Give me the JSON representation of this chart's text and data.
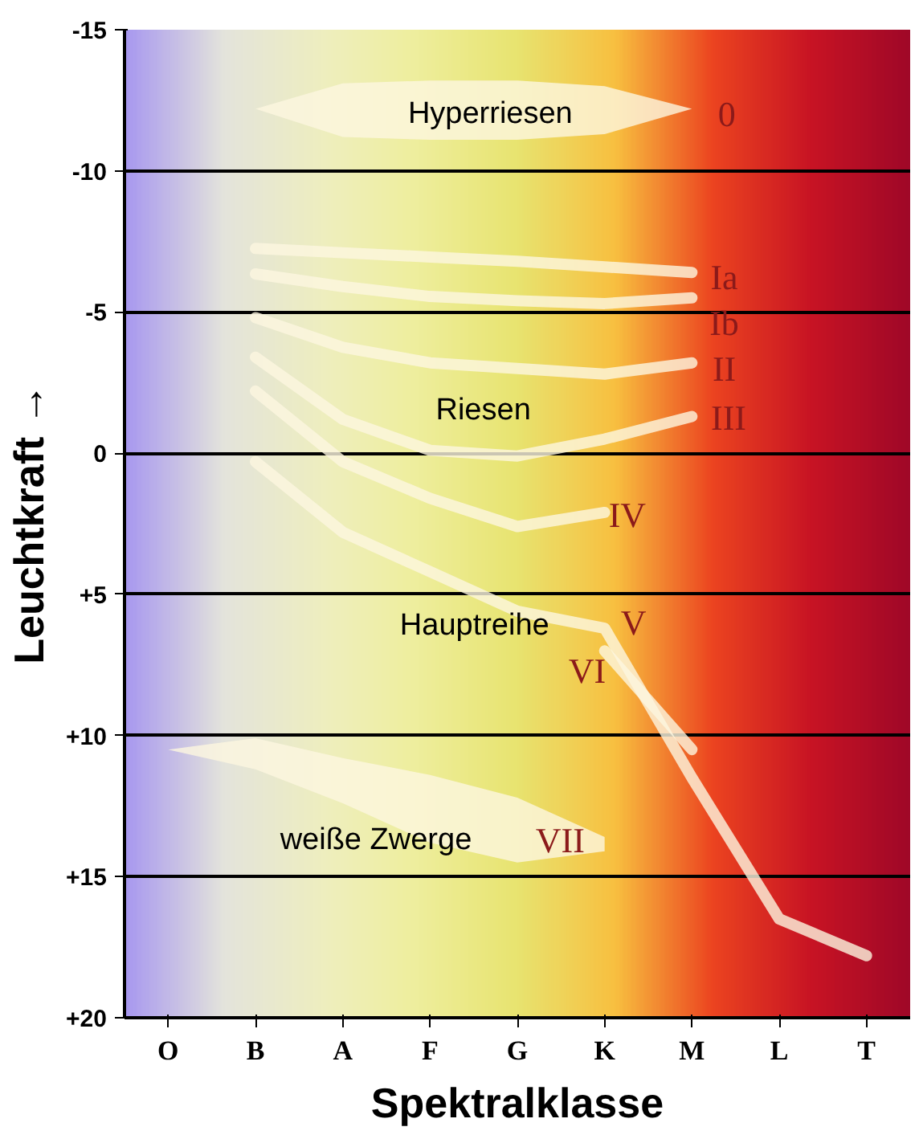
{
  "chart_data": {
    "type": "line",
    "xlabel": "Spektralklasse",
    "ylabel": "Leuchtkraft →",
    "categories": [
      "O",
      "B",
      "A",
      "F",
      "G",
      "K",
      "M",
      "L",
      "T"
    ],
    "ylim": [
      20,
      -15
    ],
    "yticks": [
      -15,
      -10,
      -5,
      0,
      {
        "value": 5,
        "label": "+5"
      },
      {
        "value": 10,
        "label": "+10"
      },
      {
        "value": 15,
        "label": "+15"
      },
      {
        "value": 20,
        "label": "+20"
      }
    ],
    "grid": "y",
    "line_style": "solid",
    "marker": "none",
    "series": [
      {
        "color": "#fdf6e0",
        "values": [
          null,
          null,
          null,
          null,
          null,
          null,
          null,
          null,
          null
        ],
        "lower": [
          null,
          -12.2,
          -11.2,
          -11.1,
          -11.1,
          -11.3,
          -12.2,
          null,
          null
        ],
        "upper": [
          null,
          -12.2,
          -13.1,
          -13.2,
          -13.2,
          -13.0,
          -12.2,
          null,
          null
        ]
      },
      {
        "color": "#fdf6e0",
        "values": [
          null,
          -7.25,
          -7.1,
          -6.95,
          -6.8,
          -6.6,
          -6.4,
          null,
          null
        ]
      },
      {
        "color": "#fdf6e0",
        "values": [
          null,
          -6.35,
          -5.9,
          -5.55,
          -5.4,
          -5.3,
          -5.5,
          null,
          null
        ]
      },
      {
        "color": "#fdf6e0",
        "values": [
          null,
          -4.8,
          -3.75,
          -3.2,
          -3.0,
          -2.8,
          -3.2,
          null,
          null
        ]
      },
      {
        "color": "#fdf6e0",
        "values": [
          null,
          -3.4,
          -1.2,
          -0.1,
          0.1,
          -0.5,
          -1.3,
          null,
          null
        ]
      },
      {
        "color": "#fdf6e0",
        "values": [
          null,
          -2.2,
          0.3,
          1.6,
          2.6,
          2.1,
          null,
          null,
          null
        ]
      },
      {
        "color": "#fdf6e0",
        "values": [
          null,
          0.3,
          2.8,
          4.2,
          5.6,
          6.2,
          11.5,
          16.5,
          17.8
        ]
      },
      {
        "color": "#fdf6e0",
        "values": [
          null,
          null,
          null,
          null,
          null,
          7.0,
          10.5,
          null,
          null
        ]
      },
      {
        "color": "#fdf6e0",
        "values": [
          null,
          null,
          null,
          null,
          null,
          null,
          null,
          null,
          null
        ],
        "lower": [
          10.5,
          11.2,
          12.4,
          13.8,
          14.5,
          14.1,
          null,
          null,
          null
        ],
        "upper": [
          10.5,
          10.1,
          10.8,
          11.4,
          12.2,
          13.6,
          null,
          null,
          null
        ]
      }
    ],
    "annotations": [
      "Hyperriesen",
      "Riesen",
      "Hauptreihe",
      "weiße Zwerge",
      "0",
      "Ia",
      "Ib",
      "II",
      "III",
      "IV",
      "V",
      "VI",
      "VII"
    ]
  }
}
